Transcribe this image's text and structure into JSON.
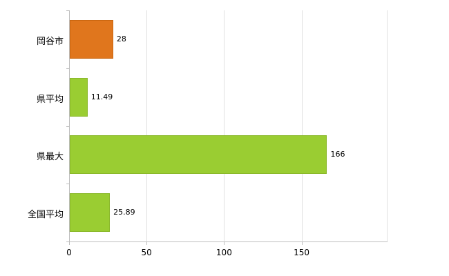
{
  "chart_data": {
    "type": "bar",
    "orientation": "horizontal",
    "title": "",
    "xlabel": "",
    "ylabel": "",
    "categories": [
      "岡谷市",
      "県平均",
      "県最大",
      "全国平均"
    ],
    "values": [
      28,
      11.49,
      166,
      25.89
    ],
    "value_labels": [
      "28",
      "11.49",
      "166",
      "25.89"
    ],
    "bar_colors": [
      "#e0761d",
      "#9acd32",
      "#9acd32",
      "#9acd32"
    ],
    "bar_border_colors": [
      "#c9650f",
      "#8ab82a",
      "#8ab82a",
      "#8ab82a"
    ],
    "xticks": [
      0,
      50,
      100,
      150
    ],
    "xlim": [
      0,
      205
    ],
    "grid": true,
    "legend": null,
    "colors": {
      "grid": "#e0e0e0",
      "axis": "#bdbdbd",
      "background": "#ffffff",
      "text": "#000000"
    }
  }
}
